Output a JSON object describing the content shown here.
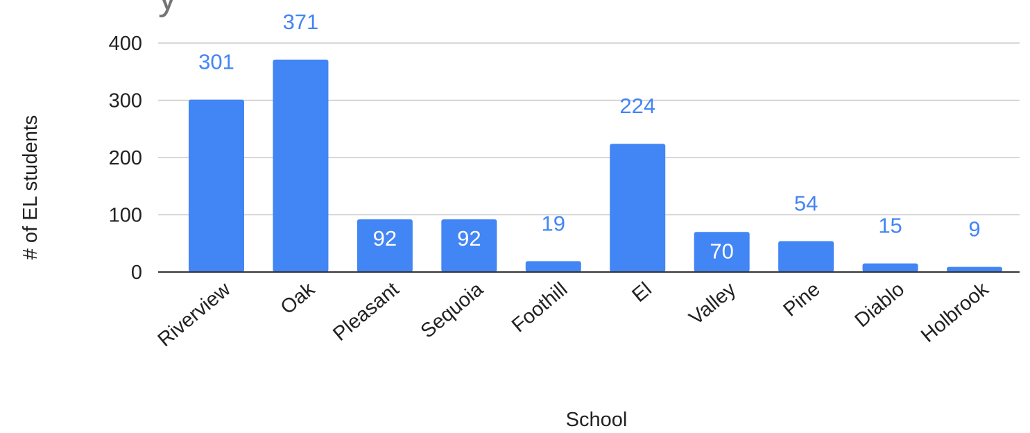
{
  "chart_data": {
    "type": "bar",
    "title_fragment": "y",
    "xlabel": "School",
    "ylabel": "# of EL students",
    "ylim": [
      0,
      400
    ],
    "yticks": [
      0,
      100,
      200,
      300,
      400
    ],
    "grid": true,
    "categories": [
      "Riverview",
      "Oak",
      "Pleasant",
      "Sequoia",
      "Foothill",
      "El",
      "Valley",
      "Pine",
      "Diablo",
      "Holbrook"
    ],
    "values": [
      301,
      371,
      92,
      92,
      19,
      224,
      70,
      54,
      15,
      9
    ],
    "label_inside": [
      false,
      false,
      true,
      true,
      false,
      false,
      true,
      false,
      false,
      false
    ],
    "bar_color": "#4285f4",
    "label_color_outside": "#4285f4",
    "label_color_inside": "#ffffff"
  }
}
